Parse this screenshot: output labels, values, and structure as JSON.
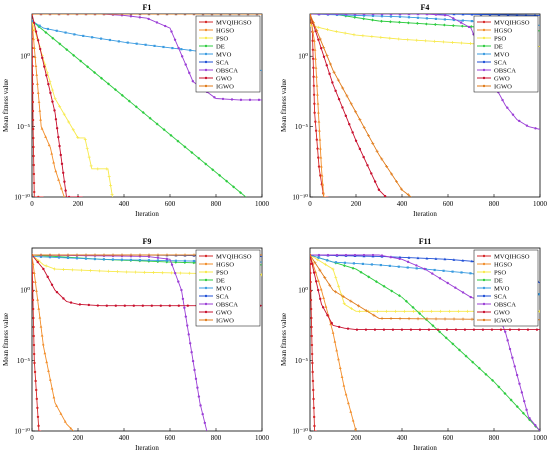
{
  "legend_names": [
    "MVQIHGSO",
    "HGSO",
    "PSO",
    "DE",
    "MVO",
    "SCA",
    "OBSCA",
    "GWO",
    "IGWO"
  ],
  "colors": {
    "MVQIHGSO": "#d62728",
    "HGSO": "#f28e2b",
    "PSO": "#f7e94a",
    "DE": "#2ecc40",
    "MVO": "#3a9be0",
    "SCA": "#1f4fd6",
    "OBSCA": "#9b3fd6",
    "GWO": "#c8102e",
    "IGWO": "#e07b1a"
  },
  "chart_data": [
    {
      "type": "line",
      "title": "F1",
      "xlabel": "Iteration",
      "ylabel": "Mean fitness value",
      "xlim": [
        0,
        1000
      ],
      "ylog": true,
      "ylim_exp": [
        -10,
        3
      ],
      "xticks": [
        "0",
        "200",
        "400",
        "600",
        "800",
        "1000"
      ],
      "yticks": [
        {
          "value": -10,
          "label": "10⁻¹⁰"
        },
        {
          "value": -5,
          "label": "10⁻⁵"
        },
        {
          "value": 0,
          "label": "10⁰"
        }
      ],
      "grid": false,
      "legend": "top-right",
      "series": [
        {
          "name": "MVQIHGSO",
          "x": [
            0,
            5,
            10,
            20,
            50
          ],
          "y": [
            2.5,
            -5,
            -10,
            -10,
            -10
          ]
        },
        {
          "name": "HGSO",
          "x": [
            0,
            40,
            80,
            100,
            120,
            140
          ],
          "y": [
            2.5,
            -5,
            -6.5,
            -8,
            -9,
            -10
          ]
        },
        {
          "name": "PSO",
          "x": [
            0,
            100,
            200,
            230,
            260,
            280,
            310,
            330,
            350
          ],
          "y": [
            2.5,
            -3,
            -5.8,
            -5.8,
            -8,
            -8,
            -8,
            -8,
            -10
          ]
        },
        {
          "name": "DE",
          "x": [
            0,
            930
          ],
          "y": [
            2.5,
            -10
          ]
        },
        {
          "name": "MVO",
          "x": [
            0,
            50,
            200,
            400,
            600,
            800,
            950,
            980,
            1000
          ],
          "y": [
            2.5,
            2,
            1.5,
            1,
            0.6,
            0.2,
            -0.5,
            -1,
            -1
          ]
        },
        {
          "name": "SCA",
          "x": [
            0,
            300,
            1000
          ],
          "y": [
            3,
            3,
            3
          ]
        },
        {
          "name": "OBSCA",
          "x": [
            0,
            100,
            200,
            300,
            400,
            500,
            600,
            700,
            800,
            900,
            1000
          ],
          "y": [
            3,
            3,
            3,
            3,
            2.9,
            2.7,
            2,
            -1.8,
            -3,
            -3.1,
            -3.1
          ]
        },
        {
          "name": "GWO",
          "x": [
            0,
            100,
            150,
            200,
            220
          ],
          "y": [
            3,
            -4,
            -10,
            -10,
            -10
          ]
        },
        {
          "name": "IGWO",
          "x": [
            0,
            100,
            1000
          ],
          "y": [
            3,
            3,
            3
          ]
        }
      ]
    },
    {
      "type": "line",
      "title": "F4",
      "xlabel": "Iteration",
      "ylabel": "Mean fitness value",
      "xlim": [
        0,
        1000
      ],
      "ylog": true,
      "ylim_exp": [
        -10,
        3
      ],
      "xticks": [
        "0",
        "200",
        "400",
        "600",
        "800",
        "1000"
      ],
      "yticks": [
        {
          "value": -10,
          "label": "10⁻¹⁰"
        },
        {
          "value": -5,
          "label": "10⁻⁵"
        },
        {
          "value": 0,
          "label": "10⁰"
        }
      ],
      "grid": false,
      "legend": "top-right",
      "series": [
        {
          "name": "MVQIHGSO",
          "x": [
            0,
            10,
            20,
            40,
            60,
            80
          ],
          "y": [
            3,
            2,
            -4,
            -8,
            -10,
            -10
          ]
        },
        {
          "name": "HGSO",
          "x": [
            0,
            20,
            40,
            50,
            60,
            70
          ],
          "y": [
            3,
            1,
            -5,
            -8,
            -10,
            -10
          ]
        },
        {
          "name": "PSO",
          "x": [
            0,
            100,
            200,
            400,
            600,
            800,
            1000
          ],
          "y": [
            2.2,
            1.8,
            1.5,
            1.2,
            1.0,
            0.8,
            0.7
          ]
        },
        {
          "name": "DE",
          "x": [
            0,
            100,
            300,
            600,
            800,
            1000
          ],
          "y": [
            3,
            3,
            2.5,
            2.2,
            2.0,
            1.8
          ]
        },
        {
          "name": "MVO",
          "x": [
            0,
            400,
            600,
            800,
            1000
          ],
          "y": [
            3,
            2.8,
            2.6,
            2.4,
            2.2
          ]
        },
        {
          "name": "SCA",
          "x": [
            0,
            200,
            600,
            1000
          ],
          "y": [
            3,
            3,
            3,
            2.9
          ]
        },
        {
          "name": "OBSCA",
          "x": [
            0,
            300,
            500,
            600,
            700,
            750,
            800,
            850,
            900,
            950,
            1000
          ],
          "y": [
            3,
            3,
            3,
            2.9,
            2,
            0,
            -2,
            -3.5,
            -4.5,
            -5,
            -5.2
          ]
        },
        {
          "name": "GWO",
          "x": [
            0,
            100,
            200,
            300,
            330
          ],
          "y": [
            3,
            -2,
            -6,
            -9.5,
            -10
          ]
        },
        {
          "name": "IGWO",
          "x": [
            0,
            100,
            200,
            300,
            400,
            440
          ],
          "y": [
            3,
            -1,
            -4,
            -7,
            -9.5,
            -10
          ]
        }
      ]
    },
    {
      "type": "line",
      "title": "F9",
      "xlabel": "Iteration",
      "ylabel": "Mean fitness value",
      "xlim": [
        0,
        1000
      ],
      "ylog": true,
      "ylim_exp": [
        -10,
        3
      ],
      "xticks": [
        "0",
        "200",
        "400",
        "600",
        "800",
        "1000"
      ],
      "yticks": [
        {
          "value": -10,
          "label": "10⁻¹⁰"
        },
        {
          "value": -5,
          "label": "10⁻⁵"
        },
        {
          "value": 0,
          "label": "10⁰"
        }
      ],
      "grid": false,
      "legend": "top-right",
      "series": [
        {
          "name": "MVQIHGSO",
          "x": [
            0,
            10,
            30,
            40
          ],
          "y": [
            2.5,
            -5,
            -10,
            -10
          ]
        },
        {
          "name": "HGSO",
          "x": [
            0,
            50,
            100,
            150,
            180
          ],
          "y": [
            2.5,
            -4,
            -8,
            -9.5,
            -10
          ]
        },
        {
          "name": "PSO",
          "x": [
            0,
            50,
            100,
            400,
            700,
            1000
          ],
          "y": [
            2.5,
            1.8,
            1.5,
            1.3,
            1.2,
            1.1
          ]
        },
        {
          "name": "DE",
          "x": [
            0,
            300,
            600,
            1000
          ],
          "y": [
            2.5,
            2.2,
            2,
            1.8
          ]
        },
        {
          "name": "MVO",
          "x": [
            0,
            300,
            600,
            1000
          ],
          "y": [
            2.4,
            2.2,
            2.1,
            2.0
          ]
        },
        {
          "name": "SCA",
          "x": [
            0,
            500,
            1000
          ],
          "y": [
            2.5,
            2.5,
            2.4
          ]
        },
        {
          "name": "OBSCA",
          "x": [
            0,
            500,
            600,
            650,
            700,
            730,
            760
          ],
          "y": [
            2.5,
            2.4,
            2.2,
            0,
            -5,
            -8,
            -10
          ]
        },
        {
          "name": "GWO",
          "x": [
            0,
            50,
            100,
            150,
            200,
            300,
            600,
            1000
          ],
          "y": [
            2.5,
            1.5,
            0,
            -0.8,
            -1,
            -1.1,
            -1.1,
            -1.1
          ]
        },
        {
          "name": "IGWO",
          "x": [
            0,
            1000
          ],
          "y": [
            2.5,
            2.5
          ]
        }
      ]
    },
    {
      "type": "line",
      "title": "F11",
      "xlabel": "Iteration",
      "ylabel": "Mean fitness value",
      "xlim": [
        0,
        1000
      ],
      "ylog": true,
      "ylim_exp": [
        -10,
        3
      ],
      "xticks": [
        "0",
        "200",
        "400",
        "600",
        "800",
        "1000"
      ],
      "yticks": [
        {
          "value": -10,
          "label": "10⁻¹⁰"
        },
        {
          "value": -5,
          "label": "10⁻⁵"
        },
        {
          "value": 0,
          "label": "10⁰"
        }
      ],
      "grid": false,
      "legend": "top-right",
      "series": [
        {
          "name": "MVQIHGSO",
          "x": [
            0,
            10,
            20,
            30
          ],
          "y": [
            2.5,
            -5,
            -10,
            -10
          ]
        },
        {
          "name": "HGSO",
          "x": [
            0,
            50,
            100,
            150,
            200
          ],
          "y": [
            2.5,
            0,
            -3,
            -7,
            -10
          ]
        },
        {
          "name": "PSO",
          "x": [
            0,
            100,
            150,
            200,
            600,
            1000
          ],
          "y": [
            2.5,
            1.5,
            -1,
            -1.5,
            -1.5,
            -1.5
          ]
        },
        {
          "name": "DE",
          "x": [
            0,
            200,
            400,
            600,
            800,
            1000
          ],
          "y": [
            2.5,
            1.5,
            -0.5,
            -3.5,
            -6.5,
            -10
          ]
        },
        {
          "name": "MVO",
          "x": [
            0,
            100,
            300,
            500,
            700,
            800,
            900,
            1000
          ],
          "y": [
            2.5,
            2,
            1.8,
            1.5,
            1.2,
            0.8,
            0,
            -0.3
          ]
        },
        {
          "name": "SCA",
          "x": [
            0,
            300,
            600,
            900,
            1000
          ],
          "y": [
            2.5,
            2.4,
            2.2,
            1.8,
            0.5
          ]
        },
        {
          "name": "OBSCA",
          "x": [
            0,
            300,
            400,
            500,
            600,
            700,
            800,
            850,
            900,
            950,
            1000
          ],
          "y": [
            2.5,
            2.5,
            2.2,
            1.5,
            0.5,
            -0.5,
            -1,
            -3,
            -6,
            -9,
            -10
          ]
        },
        {
          "name": "GWO",
          "x": [
            0,
            50,
            100,
            150,
            200,
            400,
            600,
            800,
            1000
          ],
          "y": [
            2.5,
            -1,
            -2.5,
            -2.7,
            -2.8,
            -2.8,
            -2.8,
            -2.8,
            -2.8
          ]
        },
        {
          "name": "IGWO",
          "x": [
            0,
            100,
            300,
            1000
          ],
          "y": [
            2.5,
            0,
            -2,
            -2.1
          ]
        }
      ]
    }
  ]
}
